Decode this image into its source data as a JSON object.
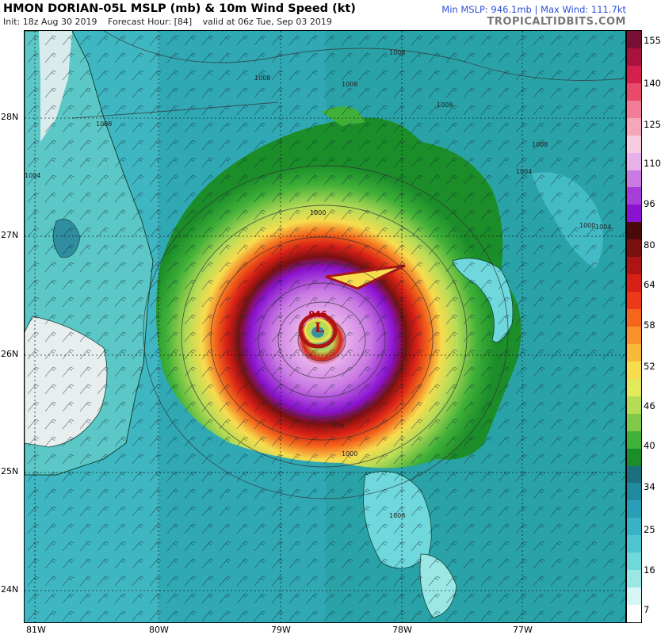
{
  "header": {
    "title": "HMON DORIAN-05L MSLP (mb) & 10m Wind Speed (kt)",
    "init": "Init: 18z Aug 30 2019",
    "forecast_hour": "Forecast Hour: [84]",
    "valid": "valid at 06z Tue, Sep 03 2019",
    "min_max": "Min MSLP: 946.1mb | Max Wind: 111.7kt",
    "brand": "TROPICALTIDBITS.COM"
  },
  "map": {
    "latitude_labels": [
      "28N",
      "27N",
      "26N",
      "25N",
      "24N"
    ],
    "longitude_labels": [
      "81W",
      "80W",
      "79W",
      "78W",
      "77W"
    ],
    "storm": {
      "low_marker": "L",
      "central_pressure_label": "946",
      "center_lat": 26.2,
      "center_lon": -78.6
    },
    "isobar_labels": [
      "1008",
      "1008",
      "1008",
      "1008",
      "1008",
      "1008",
      "1004",
      "1004",
      "1004",
      "1000",
      "1000",
      "996",
      "1000",
      "1008"
    ],
    "land_color": "#e8eeee",
    "ocean_color": "#2aa3a8"
  },
  "colorbar": {
    "labels": [
      "155",
      "140",
      "125",
      "110",
      "96",
      "80",
      "64",
      "58",
      "52",
      "46",
      "40",
      "34",
      "25",
      "16",
      "7"
    ],
    "colors": [
      "#7a0f33",
      "#a8123d",
      "#d51f4c",
      "#e94a6b",
      "#f17d96",
      "#f5a6b9",
      "#f6cde0",
      "#e7b0ea",
      "#c97ae3",
      "#a83ed9",
      "#8a13d0",
      "#4a0a0a",
      "#7a1010",
      "#ad1515",
      "#d72016",
      "#ec3a19",
      "#f4661b",
      "#f7922a",
      "#f9b93a",
      "#f7dc4e",
      "#e2ea5c",
      "#b6dc57",
      "#7fc84a",
      "#3fb038",
      "#1b8e2a",
      "#1c6f7e",
      "#208aa0",
      "#2a9eb8",
      "#38b2c6",
      "#4ec5d0",
      "#6fd8dc",
      "#9ae7e6",
      "#d5f6f4",
      "#ffffff"
    ]
  }
}
